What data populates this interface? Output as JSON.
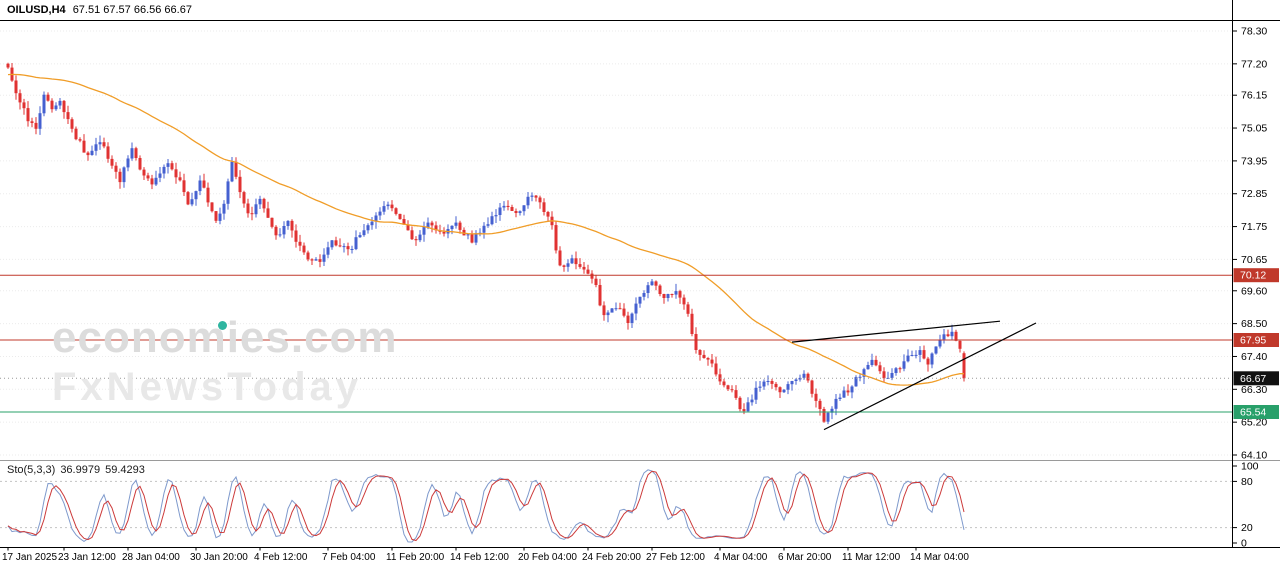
{
  "window": {
    "symbol_period": "OILUSD,H4",
    "ohlc_values": "67.51 67.57 66.56 66.67"
  },
  "watermark": {
    "line1": "economies.com",
    "line2": "FxNewsToday"
  },
  "indicator": {
    "name": "Sto(5,3,3)",
    "main_value": "36.9979",
    "signal_value": "59.4293"
  },
  "colors": {
    "background": "#ffffff",
    "bull": "#4560d0",
    "bear": "#e03232",
    "ma": "#f09d28",
    "current_tag": "#111111",
    "stoch_main": "#7e99cc",
    "stoch_signal": "#cc3a3a",
    "watermark_accent": "#2fb5a0"
  },
  "chart_data": {
    "type": "candlestick",
    "symbol": "OILUSD",
    "timeframe": "H4",
    "ylim": [
      64.1,
      78.3
    ],
    "y_axis": {
      "ticks": [
        "78.30",
        "77.20",
        "76.15",
        "75.05",
        "73.95",
        "72.85",
        "71.75",
        "70.65",
        "69.60",
        "68.50",
        "67.40",
        "66.30",
        "65.20",
        "64.10"
      ]
    },
    "x_axis": {
      "ticks": [
        {
          "i": 0,
          "label": "17 Jan 2025"
        },
        {
          "i": 14,
          "label": "23 Jan 12:00"
        },
        {
          "i": 30,
          "label": "28 Jan 04:00"
        },
        {
          "i": 47,
          "label": "30 Jan 20:00"
        },
        {
          "i": 63,
          "label": "4 Feb 12:00"
        },
        {
          "i": 80,
          "label": "7 Feb 04:00"
        },
        {
          "i": 96,
          "label": "11 Feb 20:00"
        },
        {
          "i": 112,
          "label": "14 Feb 12:00"
        },
        {
          "i": 129,
          "label": "20 Feb 04:00"
        },
        {
          "i": 145,
          "label": "24 Feb 20:00"
        },
        {
          "i": 161,
          "label": "27 Feb 12:00"
        },
        {
          "i": 178,
          "label": "4 Mar 04:00"
        },
        {
          "i": 194,
          "label": "6 Mar 20:00"
        },
        {
          "i": 210,
          "label": "11 Mar 12:00"
        },
        {
          "i": 227,
          "label": "14 Mar 04:00"
        }
      ]
    },
    "candle_count": 240,
    "price_path": [
      [
        0,
        77.0
      ],
      [
        1,
        76.6
      ],
      [
        3,
        76.0
      ],
      [
        5,
        75.3
      ],
      [
        7,
        75.1
      ],
      [
        9,
        76.2
      ],
      [
        11,
        75.7
      ],
      [
        13,
        75.9
      ],
      [
        16,
        75.0
      ],
      [
        20,
        74.1
      ],
      [
        23,
        74.6
      ],
      [
        26,
        73.8
      ],
      [
        28,
        73.3
      ],
      [
        31,
        74.3
      ],
      [
        34,
        73.5
      ],
      [
        36,
        73.2
      ],
      [
        40,
        73.9
      ],
      [
        43,
        73.2
      ],
      [
        45,
        72.4
      ],
      [
        48,
        73.3
      ],
      [
        52,
        71.9
      ],
      [
        54,
        72.6
      ],
      [
        56,
        73.9
      ],
      [
        58,
        73.0
      ],
      [
        60,
        72.1
      ],
      [
        63,
        72.6
      ],
      [
        67,
        71.4
      ],
      [
        70,
        71.9
      ],
      [
        74,
        70.8
      ],
      [
        78,
        70.5
      ],
      [
        81,
        71.3
      ],
      [
        85,
        70.9
      ],
      [
        88,
        71.5
      ],
      [
        92,
        72.1
      ],
      [
        95,
        72.5
      ],
      [
        98,
        71.9
      ],
      [
        102,
        71.2
      ],
      [
        105,
        71.9
      ],
      [
        108,
        71.5
      ],
      [
        112,
        71.8
      ],
      [
        116,
        71.3
      ],
      [
        120,
        71.9
      ],
      [
        124,
        72.5
      ],
      [
        127,
        72.2
      ],
      [
        131,
        72.8
      ],
      [
        134,
        72.3
      ],
      [
        136,
        71.7
      ],
      [
        138,
        70.4
      ],
      [
        141,
        70.7
      ],
      [
        144,
        70.3
      ],
      [
        147,
        69.7
      ],
      [
        149,
        68.7
      ],
      [
        152,
        69.1
      ],
      [
        155,
        68.6
      ],
      [
        158,
        69.3
      ],
      [
        161,
        70.0
      ],
      [
        164,
        69.3
      ],
      [
        167,
        69.6
      ],
      [
        170,
        68.9
      ],
      [
        172,
        67.6
      ],
      [
        175,
        67.3
      ],
      [
        178,
        66.6
      ],
      [
        181,
        66.2
      ],
      [
        184,
        65.5
      ],
      [
        187,
        66.3
      ],
      [
        190,
        66.6
      ],
      [
        193,
        66.1
      ],
      [
        196,
        66.5
      ],
      [
        199,
        66.9
      ],
      [
        202,
        65.9
      ],
      [
        204,
        65.3
      ],
      [
        207,
        65.9
      ],
      [
        210,
        66.3
      ],
      [
        213,
        66.8
      ],
      [
        216,
        67.3
      ],
      [
        219,
        66.6
      ],
      [
        222,
        66.9
      ],
      [
        225,
        67.4
      ],
      [
        228,
        67.6
      ],
      [
        230,
        67.2
      ],
      [
        233,
        67.9
      ],
      [
        236,
        68.3
      ],
      [
        238,
        67.6
      ],
      [
        239,
        66.9
      ]
    ],
    "last_candle": {
      "o": 67.51,
      "h": 67.57,
      "l": 66.56,
      "c": 66.67
    },
    "ma": {
      "period": 50,
      "prehistory": [
        76.3,
        77.35
      ]
    },
    "hlines": [
      {
        "price": 70.12,
        "label": "70.12",
        "color": "#c0392b"
      },
      {
        "price": 67.95,
        "label": "67.95",
        "color": "#c0392b"
      },
      {
        "price": 65.54,
        "label": "65.54",
        "color": "#28a06a"
      }
    ],
    "current_price": {
      "value": 66.67,
      "label": "66.67",
      "color": "#111111"
    },
    "trendlines": [
      {
        "from": [
          196,
          67.88
        ],
        "to": [
          248,
          68.58
        ]
      },
      {
        "from": [
          204,
          64.95
        ],
        "to": [
          257,
          68.52
        ]
      }
    ],
    "stochastic": {
      "k_period": 5,
      "slowing": 3,
      "d_period": 3,
      "scale_labels": [
        "100",
        "80",
        "20",
        "0"
      ],
      "levels": [
        80,
        20
      ]
    }
  }
}
